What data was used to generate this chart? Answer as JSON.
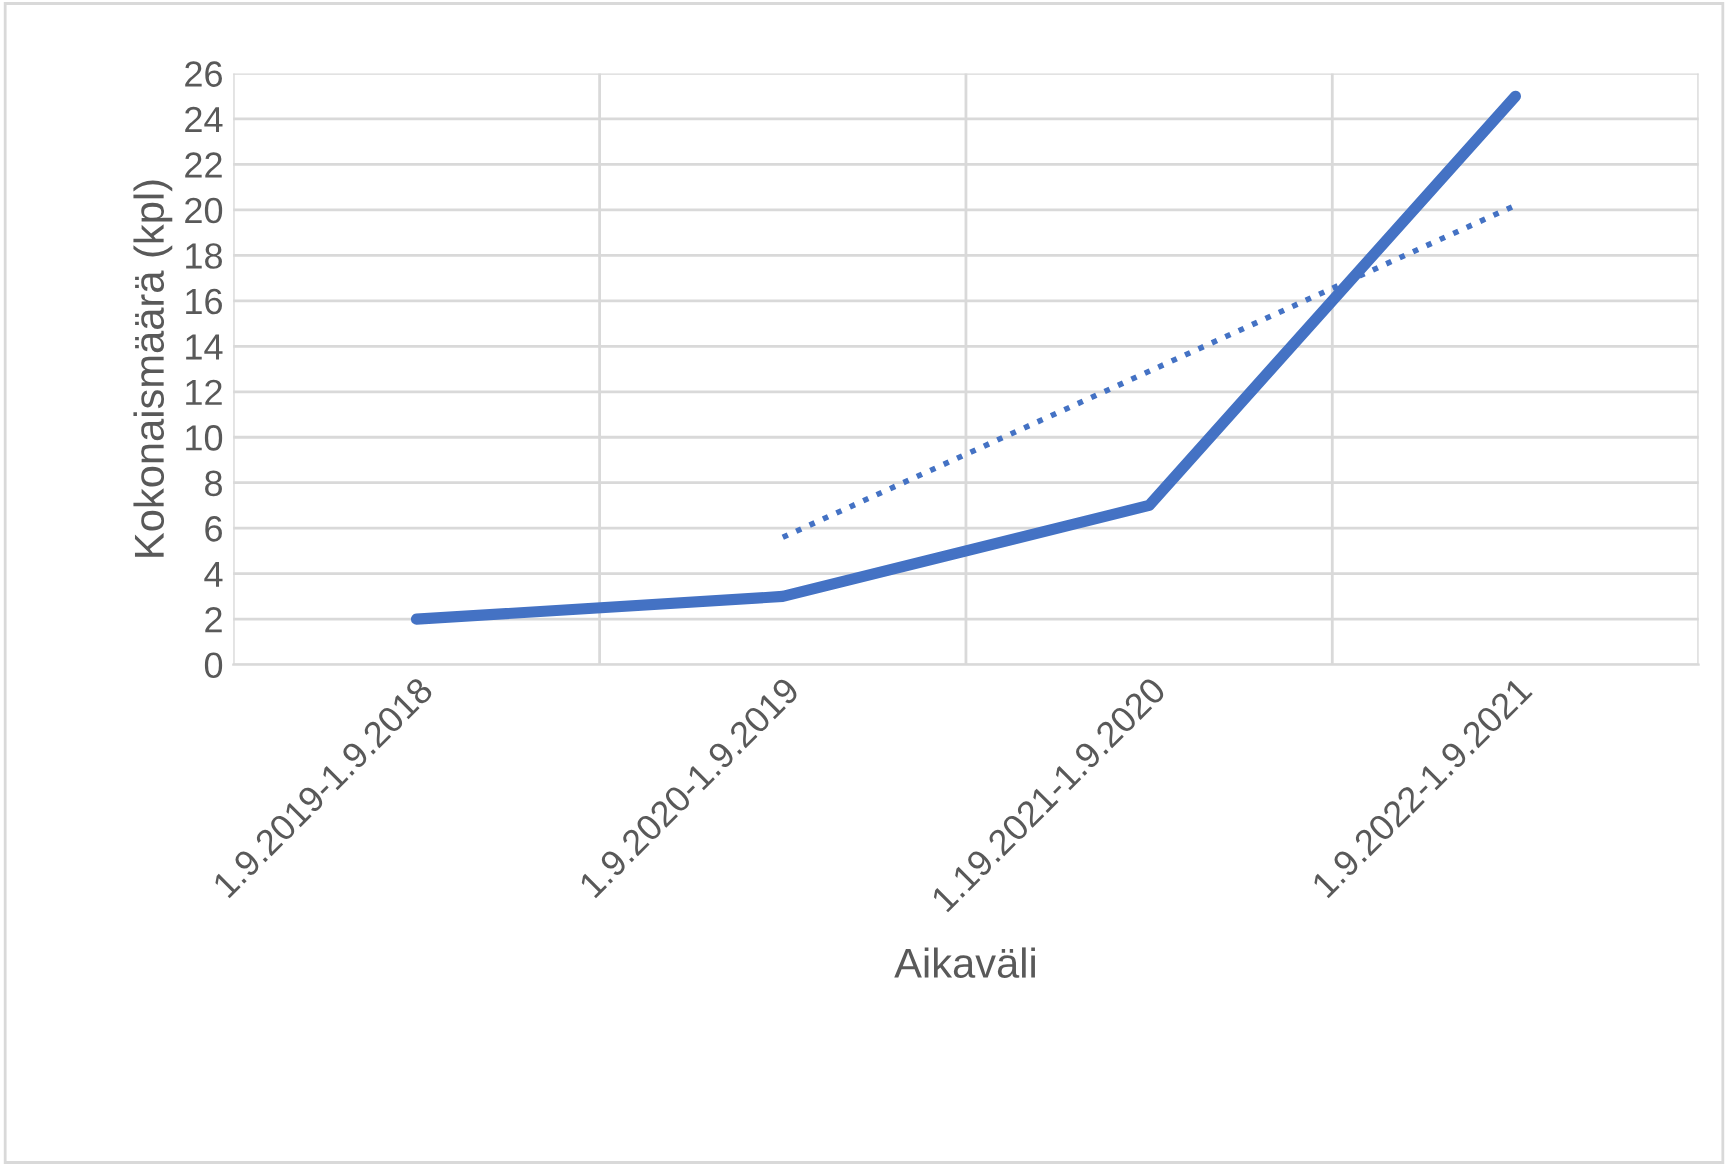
{
  "chart_data": {
    "type": "line",
    "xlabel": "Aikaväli",
    "ylabel": "Kokonaismäärä (kpl)",
    "categories": [
      "1.9.2019-1.9.2018",
      "1.9.2020-1.9.2019",
      "1.19.2021-1.9.2020",
      "1.9.2022-1.9.2021"
    ],
    "series": [
      {
        "color": "#4472c4",
        "values": [
          2,
          3,
          7,
          25
        ],
        "line_style": "solid"
      },
      {
        "color": "#4472c4",
        "values": [
          null,
          5.6,
          12.9,
          20.2
        ],
        "line_style": "dotted"
      }
    ],
    "ylim": [
      0,
      26
    ],
    "yticks": [
      0,
      2,
      4,
      6,
      8,
      10,
      12,
      14,
      16,
      18,
      20,
      22,
      24,
      26
    ],
    "grid": true,
    "legend": false,
    "marker": "none"
  }
}
